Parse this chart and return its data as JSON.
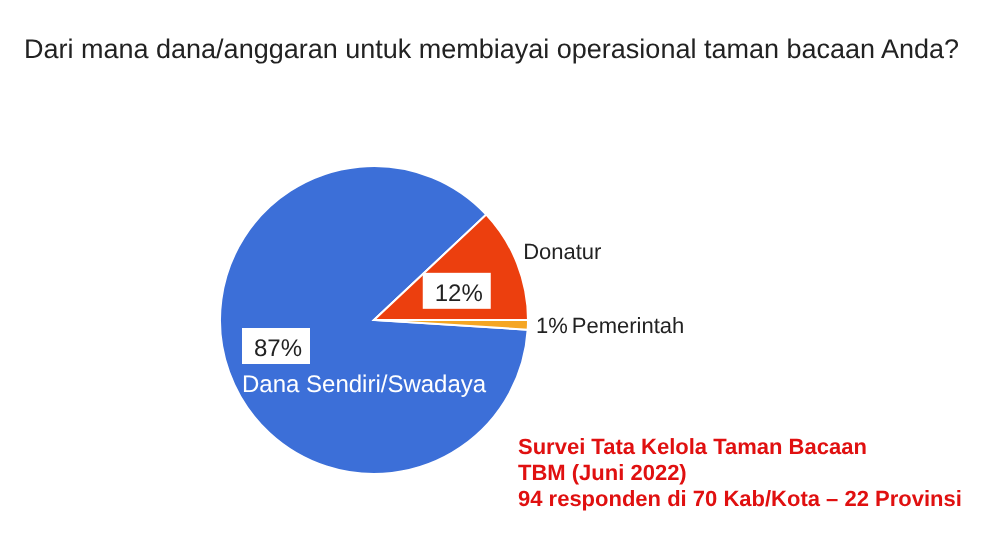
{
  "chart_data": {
    "type": "pie",
    "title": "Dari mana dana/anggaran untuk membiayai operasional taman bacaan Anda?",
    "categories": [
      "Dana Sendiri/Swadaya",
      "Donatur",
      "Pemerintah"
    ],
    "values": [
      87,
      12,
      1
    ],
    "value_labels": [
      "87%",
      "12%",
      "1%"
    ],
    "colors": [
      "#3c6fd8",
      "#ec3f0e",
      "#f5a623"
    ],
    "annotations": [
      "Survei Tata Kelola Taman Bacaan",
      "TBM (Juni 2022)",
      "94 responden di 70 Kab/Kota – 22 Provinsi"
    ]
  }
}
